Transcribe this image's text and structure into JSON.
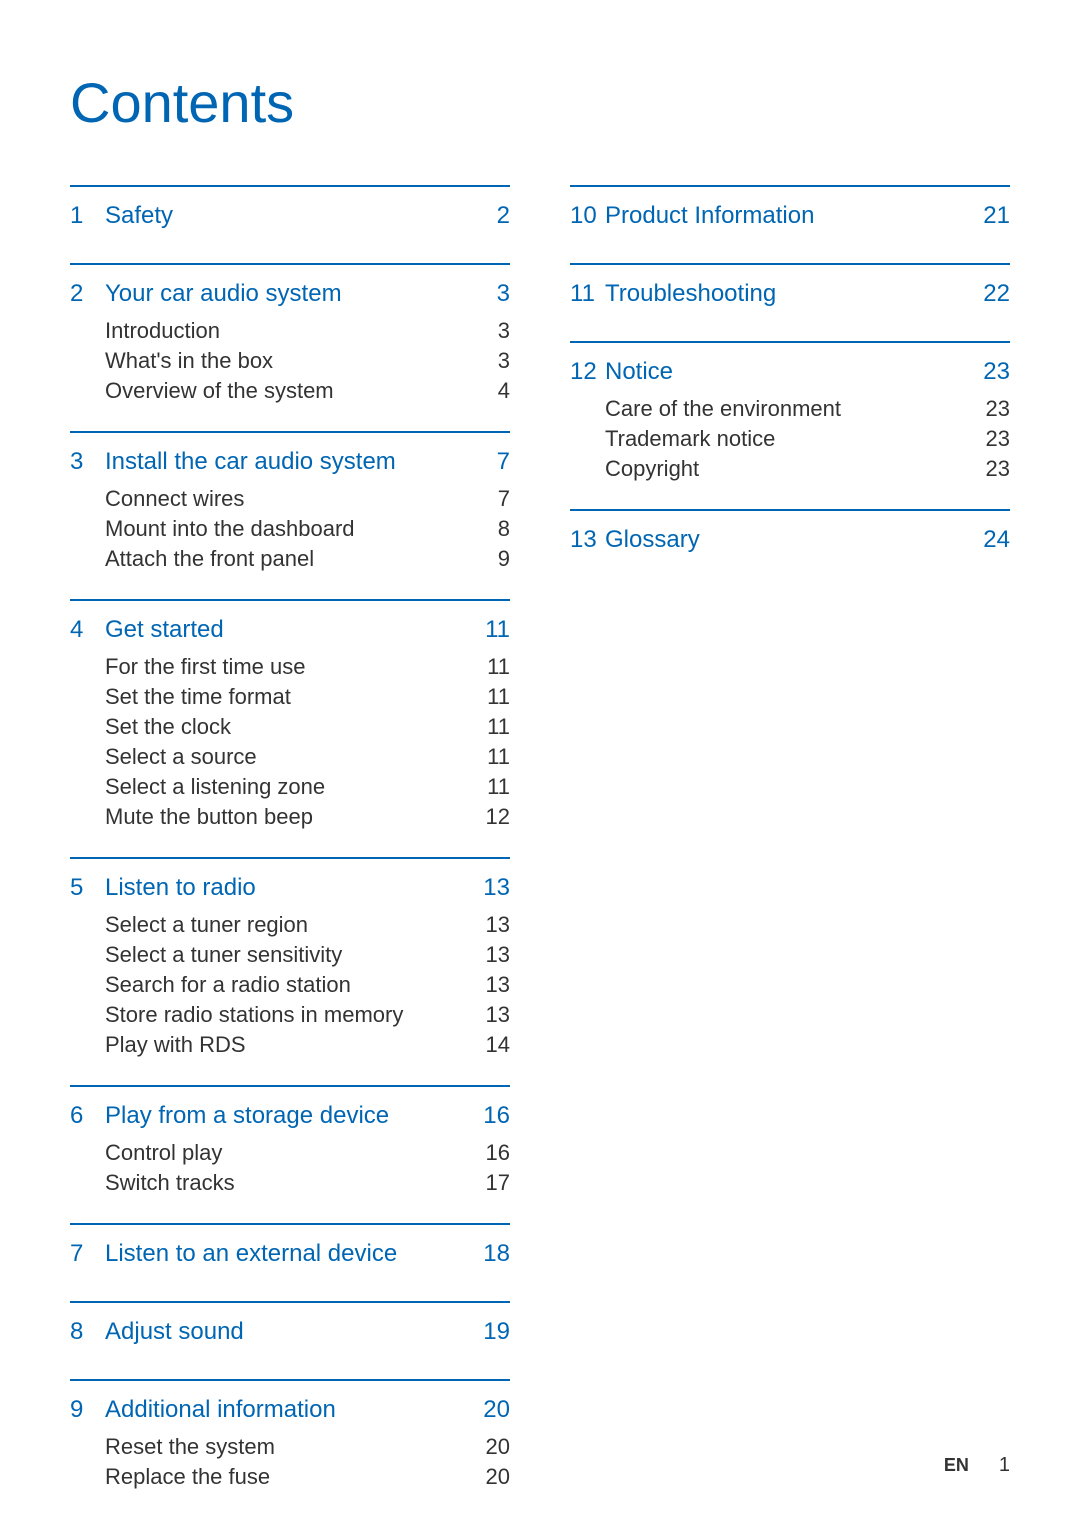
{
  "title": "Contents",
  "footer": {
    "language": "EN",
    "page": "1"
  },
  "leftColumn": [
    {
      "number": "1",
      "title": "Safety",
      "page": "2",
      "items": []
    },
    {
      "number": "2",
      "title": "Your car audio system",
      "page": "3",
      "items": [
        {
          "label": "Introduction",
          "page": "3"
        },
        {
          "label": "What's in the box",
          "page": "3"
        },
        {
          "label": "Overview of the system",
          "page": "4"
        }
      ]
    },
    {
      "number": "3",
      "title": "Install the car audio system",
      "page": "7",
      "items": [
        {
          "label": "Connect wires",
          "page": "7"
        },
        {
          "label": "Mount into the dashboard",
          "page": "8"
        },
        {
          "label": "Attach the front panel",
          "page": "9"
        }
      ]
    },
    {
      "number": "4",
      "title": "Get started",
      "page": "11",
      "items": [
        {
          "label": "For the first time use",
          "page": "11"
        },
        {
          "label": "Set the time format",
          "page": "11"
        },
        {
          "label": "Set the clock",
          "page": "11"
        },
        {
          "label": "Select a source",
          "page": "11"
        },
        {
          "label": "Select a listening zone",
          "page": "11"
        },
        {
          "label": "Mute the button beep",
          "page": "12"
        }
      ]
    },
    {
      "number": "5",
      "title": "Listen to radio",
      "page": "13",
      "items": [
        {
          "label": "Select a tuner region",
          "page": "13"
        },
        {
          "label": "Select a tuner sensitivity",
          "page": "13"
        },
        {
          "label": "Search for a radio station",
          "page": "13"
        },
        {
          "label": "Store radio stations in memory",
          "page": "13"
        },
        {
          "label": "Play with RDS",
          "page": "14"
        }
      ]
    },
    {
      "number": "6",
      "title": "Play from a storage device",
      "page": "16",
      "items": [
        {
          "label": "Control play",
          "page": "16"
        },
        {
          "label": "Switch tracks",
          "page": "17"
        }
      ]
    },
    {
      "number": "7",
      "title": "Listen to an external device",
      "page": "18",
      "items": []
    },
    {
      "number": "8",
      "title": "Adjust sound",
      "page": "19",
      "items": []
    },
    {
      "number": "9",
      "title": "Additional information",
      "page": "20",
      "items": [
        {
          "label": "Reset the system",
          "page": "20"
        },
        {
          "label": "Replace the fuse",
          "page": "20"
        }
      ]
    }
  ],
  "rightColumn": [
    {
      "number": "10",
      "title": "Product Information",
      "page": "21",
      "items": []
    },
    {
      "number": "11",
      "title": "Troubleshooting",
      "page": "22",
      "items": []
    },
    {
      "number": "12",
      "title": "Notice",
      "page": "23",
      "items": [
        {
          "label": "Care of the environment",
          "page": "23"
        },
        {
          "label": "Trademark notice",
          "page": "23"
        },
        {
          "label": "Copyright",
          "page": "23"
        }
      ]
    },
    {
      "number": "13",
      "title": "Glossary",
      "page": "24",
      "items": []
    }
  ]
}
